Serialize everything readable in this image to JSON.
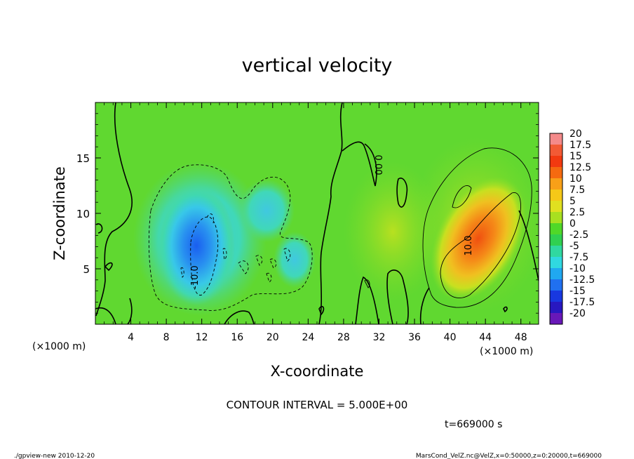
{
  "chart_data": {
    "type": "heatmap",
    "title": "vertical velocity",
    "xlabel": "X-coordinate",
    "ylabel": "Z-coordinate",
    "x_unit_left": "(×1000 m)",
    "x_unit_right": "(×1000 m)",
    "xlim": [
      0,
      50
    ],
    "ylim": [
      0,
      20
    ],
    "x_ticks": [
      4,
      8,
      12,
      16,
      20,
      24,
      28,
      32,
      36,
      40,
      44,
      48
    ],
    "x_tick_labels": [
      "4",
      "8",
      "12",
      "16",
      "20",
      "24",
      "28",
      "32",
      "36",
      "40",
      "44",
      "48"
    ],
    "y_ticks": [
      5,
      10,
      15
    ],
    "y_tick_labels": [
      "5",
      "10",
      "15"
    ],
    "contour_interval_text": "CONTOUR INTERVAL = 5.000E+00",
    "time_text": "t=669000 s",
    "contour_labels": [
      {
        "text": "0.00",
        "x": 31.5,
        "y": 14.5,
        "rotate": 90
      },
      {
        "text": "10.0",
        "x": 42.0,
        "y": 6.5,
        "rotate": -90
      },
      {
        "text": "-10.0",
        "x": 11.0,
        "y": 3.3,
        "rotate": -90
      }
    ],
    "colorbar": {
      "levels": [
        "20",
        "17.5",
        "15",
        "12.5",
        "10",
        "7.5",
        "5",
        "2.5",
        "0",
        "-2.5",
        "-5",
        "-7.5",
        "-10",
        "-12.5",
        "-15",
        "-17.5",
        "-20"
      ],
      "colors": [
        "#f48a8a",
        "#f25a35",
        "#f23a10",
        "#f56a10",
        "#f8a018",
        "#f5c818",
        "#e0e020",
        "#a8e020",
        "#50d828",
        "#30d050",
        "#30d8a0",
        "#30d8e0",
        "#20a8f0",
        "#2070f0",
        "#1838e0",
        "#2818c0",
        "#6818b8"
      ]
    },
    "features": [
      {
        "kind": "updraft",
        "x": 44,
        "y": 8,
        "peak": 15
      },
      {
        "kind": "downdraft",
        "x": 12,
        "y": 6,
        "peak": -12.5
      }
    ]
  },
  "footer": {
    "left": "./gpview-new  2010-12-20",
    "right": "MarsCond_VelZ.nc@VelZ,x=0:50000,z=0:20000,t=669000"
  }
}
